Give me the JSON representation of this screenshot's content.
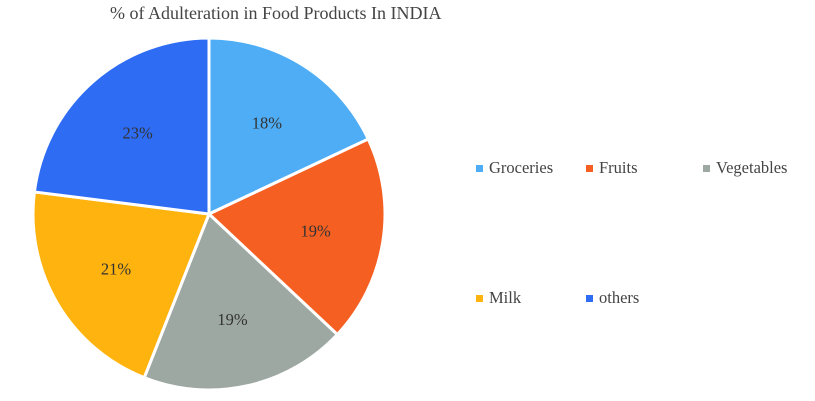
{
  "chart_data": {
    "type": "pie",
    "title": "% of Adulteration in Food Products In INDIA",
    "categories": [
      "Groceries",
      "Fruits",
      "Vegetables",
      "Milk",
      "others"
    ],
    "values": [
      18,
      19,
      19,
      21,
      23
    ],
    "labels": [
      "18%",
      "19%",
      "19%",
      "21%",
      "23%"
    ],
    "colors": [
      "#4FADF5",
      "#F55F22",
      "#9DA8A3",
      "#FFB30F",
      "#2E6CF4"
    ],
    "start_angle_deg": 0,
    "direction": "clockwise",
    "legend_position": "right"
  }
}
